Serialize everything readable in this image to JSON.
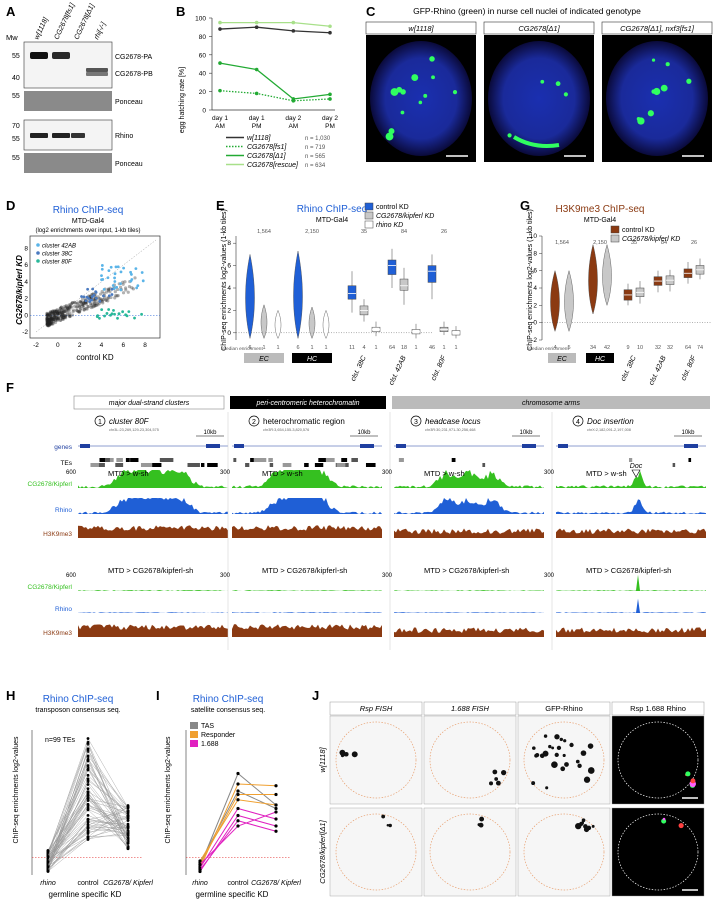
{
  "panels": {
    "A": {
      "letter": "A",
      "mw_label": "Mw",
      "lanes": [
        "w[1118]",
        "CG2678[fs1]",
        "CG2678[Δ1]",
        "rhi[-/-]"
      ],
      "blot1_marker_labels": [
        "55",
        "40"
      ],
      "blot1_band_labels": [
        "CG2678-PA",
        "CG2678-PB"
      ],
      "ponceau_label": "Ponceau",
      "ponceau_marker": "55",
      "blot2_marker_labels": [
        "70",
        "55"
      ],
      "blot2_band_label": "Rhino"
    },
    "B": {
      "letter": "B",
      "ylabel": "egg hatching rate [%]",
      "yticks": [
        "0",
        "20",
        "40",
        "60",
        "80",
        "100"
      ],
      "xticks": [
        [
          "day 1",
          "AM"
        ],
        [
          "day 1",
          "PM"
        ],
        [
          "day 2",
          "AM"
        ],
        [
          "day 2",
          "PM"
        ]
      ],
      "legend": [
        {
          "label": "w[1118]",
          "n": "n = 1,030",
          "color": "#333333",
          "style": "solid"
        },
        {
          "label": "CG2678[fs1]",
          "n": "n = 719",
          "color": "#22aa33",
          "style": "dotted"
        },
        {
          "label": "CG2678[Δ1]",
          "n": "n = 565",
          "color": "#22aa33",
          "style": "solid"
        },
        {
          "label": "CG2678[rescue]",
          "n": "n = 634",
          "color": "#a8e08a",
          "style": "solid"
        }
      ]
    },
    "C": {
      "letter": "C",
      "title": "GFP-Rhino (green) in nurse cell nuclei of indicated genotype",
      "labels": [
        "w[1118]",
        "CG2678[Δ1]",
        "CG2678[Δ1], nxf3[fs1]"
      ]
    },
    "D": {
      "letter": "D",
      "title": "Rhino  ChIP-seq",
      "subtitle": "MTD-Gal4",
      "subtitle2": "(log2 enrichments over input, 1-kb tiles)",
      "xlabel": "control KD",
      "ylabel": "CG2678/kipferl KD",
      "ticks": [
        "-2",
        "0",
        "2",
        "4",
        "6",
        "8"
      ],
      "legend": [
        "cluster 42AB",
        "cluster 38C",
        "cluster 80F"
      ]
    },
    "E": {
      "letter": "E",
      "title": "Rhino  ChIP-seq",
      "subtitle": "MTD-Gal4",
      "ylabel": "ChIP-seq enrichments log2-values (1-kb tiles)",
      "legend": [
        "control KD",
        "CG2678/kipferl KD",
        "rhino KD"
      ],
      "top_numbers": [
        "1,564",
        "2,150",
        "35",
        "84",
        "26"
      ],
      "median_label": "median enrichment",
      "medians": [
        "6",
        "1",
        "1",
        "6",
        "1",
        "1",
        "11",
        "4",
        "1",
        "64",
        "18",
        "1",
        "46",
        "1",
        "1"
      ],
      "groups": [
        "EC",
        "HC",
        "clst. 38C",
        "clst. 42AB",
        "clst. 80F"
      ],
      "yticks": [
        "0",
        "2",
        "4",
        "6",
        "8"
      ]
    },
    "G": {
      "letter": "G",
      "title": "H3K9me3  ChIP-seq",
      "subtitle": "MTD-Gal4",
      "ylabel": "ChIP-seq enrichments log2-values (1-kb tiles)",
      "legend": [
        "control KD",
        "CG2678/kipferl KD"
      ],
      "top_numbers": [
        "1,564",
        "2,150",
        "35",
        "84",
        "26"
      ],
      "median_label": "median enrichment",
      "medians": [
        "4",
        "5",
        "34",
        "42",
        "9",
        "10",
        "32",
        "32",
        "64",
        "74"
      ],
      "groups": [
        "EC",
        "HC",
        "clst. 38C",
        "clst. 42AB",
        "clst. 80F"
      ],
      "yticks": [
        "-2",
        "0",
        "2",
        "4",
        "6",
        "8",
        "10"
      ]
    },
    "F": {
      "letter": "F",
      "headers": [
        "major dual-strand clusters",
        "peri-centromeric heterochromatin",
        "chromosome arms"
      ],
      "regions": [
        {
          "num": "1",
          "title": "cluster 80F",
          "coords": "chr3L:23,269,129-23,304,575"
        },
        {
          "num": "2",
          "title": "heterochromatic region",
          "coords": "chr3R:3,654,155-3,820,576"
        },
        {
          "num": "3",
          "title": "headcase locus",
          "coords": "chr3R:30,231,971-30,256,468"
        },
        {
          "num": "4",
          "title": "Doc insertion",
          "coords": "chrX:2,182,091-2,197,008"
        }
      ],
      "scale": "10kb",
      "row_labels": [
        "genes",
        "TEs",
        "CG2678/Kipferl",
        "Rhino",
        "H3K9me3",
        "CG2678/Kipferl",
        "Rhino",
        "H3K9me3"
      ],
      "cond1": "MTD > w-sh",
      "cond2": "MTD > CG2678/kipferl-sh",
      "track_max": "600",
      "track_max2": "300",
      "doc_label": "Doc"
    },
    "H": {
      "letter": "H",
      "title": "Rhino  ChIP-seq",
      "subtitle": "transposon consensus seq.",
      "n_label": "n=99 TEs",
      "ylabel": "ChIP-seq enrichments log2-values",
      "xticks": [
        "rhino",
        "control",
        "CG2678/ Kipferl"
      ],
      "xlabel": "germline specific KD"
    },
    "I": {
      "letter": "I",
      "title": "Rhino  ChIP-seq",
      "subtitle": "satellite consensus seq.",
      "legend": [
        "TAS",
        "Responder",
        "1.688"
      ],
      "ylabel": "ChIP-seq enrichments log2-values",
      "xticks": [
        "rhino",
        "control",
        "CG2678/ Kipferl"
      ],
      "xlabel": "germline specific KD"
    },
    "J": {
      "letter": "J",
      "columns": [
        "Rsp FISH",
        "1.688 FISH",
        "GFP-Rhino",
        "Rsp  1.688  Rhino"
      ],
      "rows": [
        "w[1118]",
        "CG2678/kipferl[Δ1]"
      ]
    }
  },
  "chart_data": [
    {
      "type": "line",
      "title": "",
      "xlabel": "",
      "ylabel": "egg hatching rate [%]",
      "categories": [
        "day 1 AM",
        "day 1 PM",
        "day 2 AM",
        "day 2 PM"
      ],
      "ylim": [
        0,
        100
      ],
      "series": [
        {
          "name": "w[1118]",
          "values": [
            88,
            90,
            86,
            84
          ]
        },
        {
          "name": "CG2678[fs1]",
          "values": [
            21,
            18,
            10,
            12
          ]
        },
        {
          "name": "CG2678[Δ1]",
          "values": [
            51,
            44,
            12,
            17
          ]
        },
        {
          "name": "CG2678[rescue]",
          "values": [
            95,
            95,
            95,
            91
          ]
        }
      ]
    },
    {
      "type": "scatter",
      "title": "Rhino  ChIP-seq",
      "xlabel": "control KD",
      "ylabel": "CG2678/kipferl KD",
      "xlim": [
        -2,
        9
      ],
      "ylim": [
        -2,
        9
      ]
    }
  ],
  "colors": {
    "blue": "#1f5fd6",
    "green": "#35c020",
    "brown": "#8b3a12",
    "grey": "#9a9a9a",
    "magenta": "#e020c0",
    "orange": "#f0a030"
  }
}
